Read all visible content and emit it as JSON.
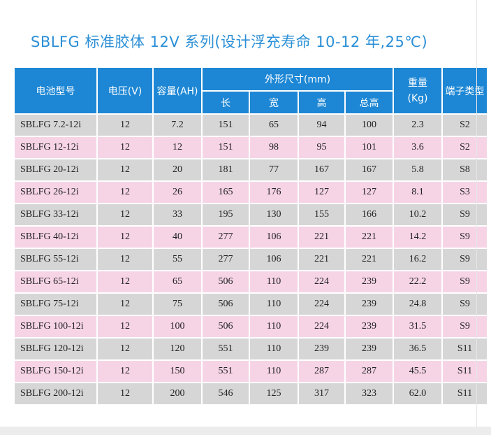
{
  "title": "SBLFG 标准胶体 12V 系列(设计浮充寿命 10-12 年,25℃)",
  "headers": {
    "model": "电池型号",
    "voltage": "电压(V)",
    "capacity": "容量(AH)",
    "dimensions": "外形尺寸(mm)",
    "length": "长",
    "width": "宽",
    "height": "高",
    "total_height": "总高",
    "weight": "重量\n(Kg)",
    "terminal": "端子类型"
  },
  "rows": [
    {
      "model": "SBLFG 7.2-12i",
      "voltage": "12",
      "capacity": "7.2",
      "length": "151",
      "width": "65",
      "height": "94",
      "total_height": "100",
      "weight": "2.3",
      "terminal": "S2"
    },
    {
      "model": "SBLFG 12-12i",
      "voltage": "12",
      "capacity": "12",
      "length": "151",
      "width": "98",
      "height": "95",
      "total_height": "101",
      "weight": "3.6",
      "terminal": "S2"
    },
    {
      "model": "SBLFG 20-12i",
      "voltage": "12",
      "capacity": "20",
      "length": "181",
      "width": "77",
      "height": "167",
      "total_height": "167",
      "weight": "5.8",
      "terminal": "S8"
    },
    {
      "model": "SBLFG 26-12i",
      "voltage": "12",
      "capacity": "26",
      "length": "165",
      "width": "176",
      "height": "127",
      "total_height": "127",
      "weight": "8.1",
      "terminal": "S3"
    },
    {
      "model": "SBLFG 33-12i",
      "voltage": "12",
      "capacity": "33",
      "length": "195",
      "width": "130",
      "height": "155",
      "total_height": "166",
      "weight": "10.2",
      "terminal": "S9"
    },
    {
      "model": "SBLFG 40-12i",
      "voltage": "12",
      "capacity": "40",
      "length": "277",
      "width": "106",
      "height": "221",
      "total_height": "221",
      "weight": "14.2",
      "terminal": "S9"
    },
    {
      "model": "SBLFG 55-12i",
      "voltage": "12",
      "capacity": "55",
      "length": "277",
      "width": "106",
      "height": "221",
      "total_height": "221",
      "weight": "16.2",
      "terminal": "S9"
    },
    {
      "model": "SBLFG 65-12i",
      "voltage": "12",
      "capacity": "65",
      "length": "506",
      "width": "110",
      "height": "224",
      "total_height": "239",
      "weight": "22.2",
      "terminal": "S9"
    },
    {
      "model": "SBLFG 75-12i",
      "voltage": "12",
      "capacity": "75",
      "length": "506",
      "width": "110",
      "height": "224",
      "total_height": "239",
      "weight": "24.8",
      "terminal": "S9"
    },
    {
      "model": "SBLFG 100-12i",
      "voltage": "12",
      "capacity": "100",
      "length": "506",
      "width": "110",
      "height": "224",
      "total_height": "239",
      "weight": "31.5",
      "terminal": "S9"
    },
    {
      "model": "SBLFG 120-12i",
      "voltage": "12",
      "capacity": "120",
      "length": "551",
      "width": "110",
      "height": "239",
      "total_height": "239",
      "weight": "36.5",
      "terminal": "S11"
    },
    {
      "model": "SBLFG 150-12i",
      "voltage": "12",
      "capacity": "150",
      "length": "551",
      "width": "110",
      "height": "287",
      "total_height": "287",
      "weight": "45.5",
      "terminal": "S11"
    },
    {
      "model": "SBLFG 200-12i",
      "voltage": "12",
      "capacity": "200",
      "length": "546",
      "width": "125",
      "height": "317",
      "total_height": "323",
      "weight": "62.0",
      "terminal": "S11"
    }
  ],
  "colors": {
    "header_bg": "#1d87d5",
    "title": "#2a8fd6",
    "row_gray": "#d6d6d6",
    "row_pink": "#f6d4e6"
  }
}
